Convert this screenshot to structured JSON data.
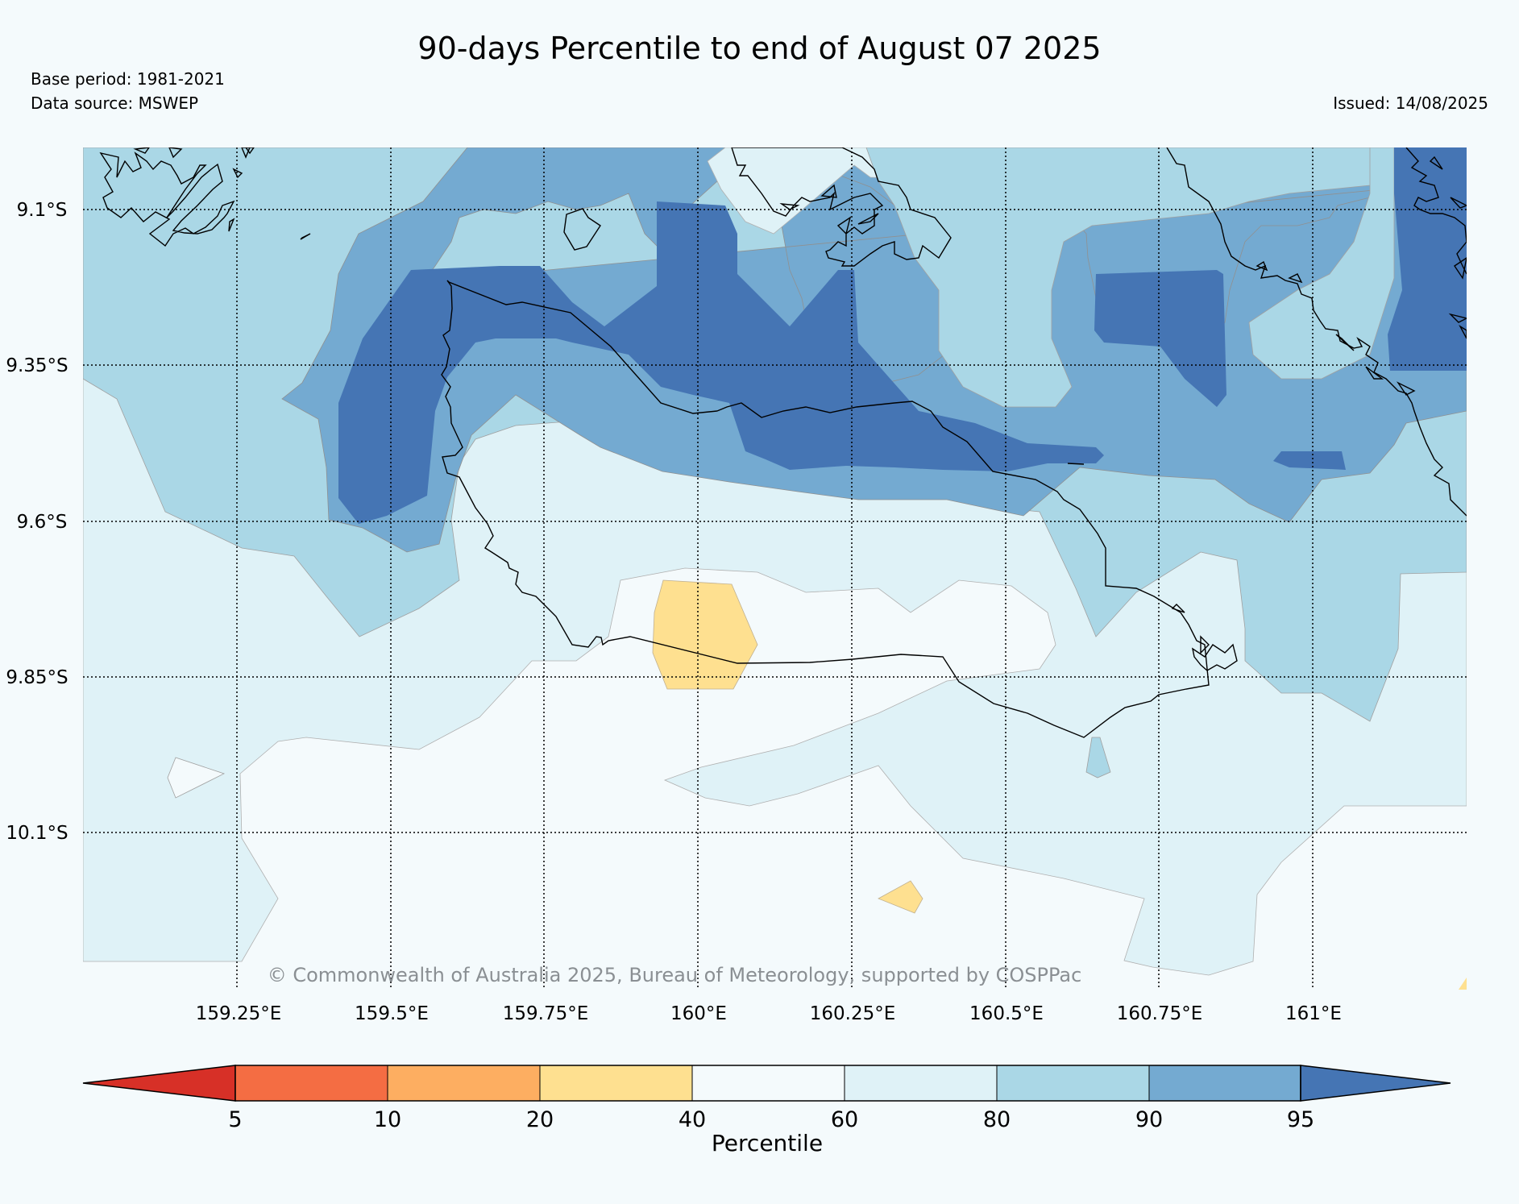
{
  "title": "90-days Percentile to end of August 07 2025",
  "base_period": "Base period: 1981-2021",
  "data_source": "Data source: MSWEP",
  "issued": "Issued: 14/08/2025",
  "copyright": "© Commonwealth of Australia 2025, Bureau of Meteorology, supported by COSPPac",
  "map": {
    "lat_labels": [
      "9.1°S",
      "9.35°S",
      "9.6°S",
      "9.85°S",
      "10.1°S"
    ],
    "lon_labels": [
      "159.25°E",
      "159.5°E",
      "159.75°E",
      "160°E",
      "160.25°E",
      "160.5°E",
      "160.75°E",
      "161°E"
    ],
    "gridlines": "dotted",
    "colors": {
      "p40_60": "#f4fafc",
      "p60_80": "#dff2f7",
      "p80_90": "#aad7e6",
      "p90_95": "#74aad1",
      "p95_plus": "#4575b4",
      "p20_40": "#fee090",
      "coastline": "#000000"
    }
  },
  "colorbar": {
    "label": "Percentile",
    "ticks": [
      "5",
      "10",
      "20",
      "40",
      "60",
      "80",
      "90",
      "95"
    ],
    "colors": [
      "#d73027",
      "#f46d43",
      "#fdae61",
      "#fee090",
      "#f4fafc",
      "#dff2f7",
      "#aad7e6",
      "#74aad1",
      "#4575b4"
    ]
  }
}
